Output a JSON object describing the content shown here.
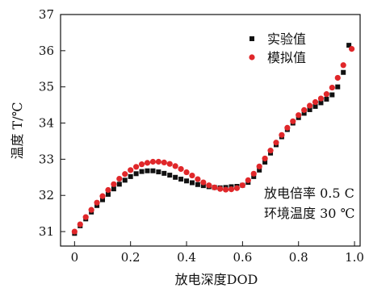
{
  "chart_data": {
    "type": "scatter",
    "xlabel": "放电深度DOD",
    "ylabel": "温度 T/℃",
    "xlim": [
      -0.05,
      1.02
    ],
    "ylim": [
      30.6,
      37
    ],
    "x_ticks": [
      0,
      0.2,
      0.4,
      0.6,
      0.8,
      1.0
    ],
    "x_tick_labels": [
      "0",
      "0.2",
      "0.4",
      "0.6",
      "0.8",
      "1.0"
    ],
    "y_ticks": [
      31,
      32,
      33,
      34,
      35,
      36,
      37
    ],
    "y_tick_labels": [
      "31",
      "32",
      "33",
      "34",
      "35",
      "36",
      "37"
    ],
    "legend_position": "top-right",
    "annotations": [
      {
        "text": "放电倍率 0.5 C"
      },
      {
        "text": "环境温度 30 ℃"
      }
    ],
    "series": [
      {
        "name": "实验值",
        "marker": "square",
        "color": "#111111",
        "points": [
          [
            0.0,
            30.95
          ],
          [
            0.02,
            31.16
          ],
          [
            0.04,
            31.35
          ],
          [
            0.06,
            31.54
          ],
          [
            0.08,
            31.72
          ],
          [
            0.1,
            31.88
          ],
          [
            0.12,
            32.03
          ],
          [
            0.14,
            32.18
          ],
          [
            0.16,
            32.31
          ],
          [
            0.18,
            32.42
          ],
          [
            0.2,
            32.52
          ],
          [
            0.22,
            32.6
          ],
          [
            0.24,
            32.66
          ],
          [
            0.26,
            32.68
          ],
          [
            0.28,
            32.68
          ],
          [
            0.3,
            32.65
          ],
          [
            0.32,
            32.61
          ],
          [
            0.34,
            32.56
          ],
          [
            0.36,
            32.5
          ],
          [
            0.38,
            32.45
          ],
          [
            0.4,
            32.4
          ],
          [
            0.42,
            32.35
          ],
          [
            0.44,
            32.3
          ],
          [
            0.46,
            32.27
          ],
          [
            0.48,
            32.24
          ],
          [
            0.5,
            32.22
          ],
          [
            0.52,
            32.21
          ],
          [
            0.54,
            32.22
          ],
          [
            0.56,
            32.24
          ],
          [
            0.58,
            32.25
          ],
          [
            0.6,
            32.28
          ],
          [
            0.62,
            32.36
          ],
          [
            0.64,
            32.52
          ],
          [
            0.66,
            32.7
          ],
          [
            0.68,
            32.92
          ],
          [
            0.7,
            33.17
          ],
          [
            0.72,
            33.4
          ],
          [
            0.74,
            33.62
          ],
          [
            0.76,
            33.82
          ],
          [
            0.78,
            34.0
          ],
          [
            0.8,
            34.15
          ],
          [
            0.82,
            34.27
          ],
          [
            0.84,
            34.37
          ],
          [
            0.86,
            34.46
          ],
          [
            0.88,
            34.56
          ],
          [
            0.9,
            34.66
          ],
          [
            0.92,
            34.78
          ],
          [
            0.94,
            35.0
          ],
          [
            0.96,
            35.4
          ],
          [
            0.98,
            36.15
          ]
        ]
      },
      {
        "name": "模拟值",
        "marker": "circle",
        "color": "#e0272a",
        "points": [
          [
            0.0,
            31.0
          ],
          [
            0.02,
            31.2
          ],
          [
            0.04,
            31.4
          ],
          [
            0.06,
            31.6
          ],
          [
            0.08,
            31.8
          ],
          [
            0.1,
            31.98
          ],
          [
            0.12,
            32.15
          ],
          [
            0.14,
            32.31
          ],
          [
            0.16,
            32.46
          ],
          [
            0.18,
            32.59
          ],
          [
            0.2,
            32.7
          ],
          [
            0.22,
            32.79
          ],
          [
            0.24,
            32.86
          ],
          [
            0.26,
            32.9
          ],
          [
            0.28,
            32.93
          ],
          [
            0.3,
            32.93
          ],
          [
            0.32,
            32.91
          ],
          [
            0.34,
            32.87
          ],
          [
            0.36,
            32.81
          ],
          [
            0.38,
            32.73
          ],
          [
            0.4,
            32.64
          ],
          [
            0.42,
            32.55
          ],
          [
            0.44,
            32.45
          ],
          [
            0.46,
            32.36
          ],
          [
            0.48,
            32.28
          ],
          [
            0.5,
            32.22
          ],
          [
            0.52,
            32.18
          ],
          [
            0.54,
            32.16
          ],
          [
            0.56,
            32.17
          ],
          [
            0.58,
            32.2
          ],
          [
            0.6,
            32.28
          ],
          [
            0.62,
            32.42
          ],
          [
            0.64,
            32.6
          ],
          [
            0.66,
            32.8
          ],
          [
            0.68,
            33.02
          ],
          [
            0.7,
            33.24
          ],
          [
            0.72,
            33.46
          ],
          [
            0.74,
            33.67
          ],
          [
            0.76,
            33.87
          ],
          [
            0.78,
            34.05
          ],
          [
            0.8,
            34.22
          ],
          [
            0.82,
            34.36
          ],
          [
            0.84,
            34.48
          ],
          [
            0.86,
            34.58
          ],
          [
            0.88,
            34.68
          ],
          [
            0.9,
            34.8
          ],
          [
            0.92,
            34.98
          ],
          [
            0.94,
            35.25
          ],
          [
            0.96,
            35.6
          ],
          [
            0.99,
            36.05
          ]
        ]
      }
    ]
  }
}
